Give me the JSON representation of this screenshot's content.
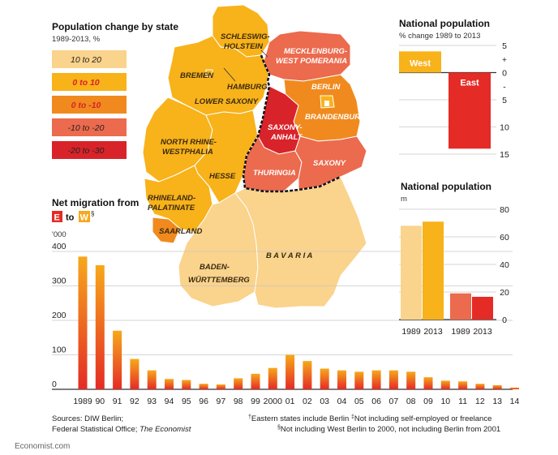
{
  "map": {
    "title": "Population change by state",
    "subtitle": "1989-2013, %",
    "legend": [
      {
        "label": "10 to 20",
        "color": "#FAD38C",
        "red": false
      },
      {
        "label": "0 to 10",
        "color": "#F8B21A",
        "red": true
      },
      {
        "label": "0 to -10",
        "color": "#F08A1E",
        "red": true
      },
      {
        "label": "-10 to -20",
        "color": "#EC6A4E",
        "red": false
      },
      {
        "label": "-20 to -30",
        "color": "#D9232A",
        "red": false
      }
    ],
    "states": {
      "schleswig": "SCHLESWIG-",
      "holstein": "HOLSTEIN",
      "mecklenburg": "MECKLENBURG-",
      "westpom": "WEST POMERANIA",
      "bremen": "BREMEN",
      "hamburg": "HAMBURG",
      "berlin": "BERLIN",
      "lower_saxony": "LOWER SAXONY",
      "brandenburg": "BRANDENBURG",
      "saxony_anhalt_1": "SAXONY-",
      "saxony_anhalt_2": "ANHALT",
      "nrw_1": "NORTH RHINE-",
      "nrw_2": "WESTPHALIA",
      "hesse": "HESSE",
      "thuringia": "THURINGIA",
      "saxony": "SAXONY",
      "rp_1": "RHINELAND-",
      "rp_2": "PALATINATE",
      "saarland": "SAARLAND",
      "bw_1": "BADEN-",
      "bw_2": "WÜRTTEMBERG",
      "bavaria": "B A V A R I A"
    }
  },
  "chart_data": [
    {
      "type": "bar",
      "title": "Net migration from",
      "title_from": "E",
      "title_to_word": "to",
      "title_to": "W",
      "title_to_mark": "§",
      "ylabel": "'000",
      "categories": [
        "1989",
        "90",
        "91",
        "92",
        "93",
        "94",
        "95",
        "96",
        "97",
        "98",
        "99",
        "2000",
        "01",
        "02",
        "03",
        "04",
        "05",
        "06",
        "07",
        "08",
        "09",
        "10",
        "11",
        "12",
        "13",
        "14"
      ],
      "values": [
        385,
        360,
        170,
        88,
        55,
        30,
        27,
        16,
        14,
        32,
        45,
        62,
        100,
        82,
        60,
        55,
        51,
        55,
        55,
        51,
        35,
        25,
        23,
        16,
        12,
        5
      ],
      "ylim": [
        0,
        400
      ],
      "yticks": [
        0,
        100,
        200,
        300,
        400
      ],
      "colors": {
        "top": "#F7A81B",
        "bottom": "#E42B26"
      }
    },
    {
      "type": "bar",
      "title": "National population",
      "subtitle": "% change 1989 to 2013",
      "categories": [
        "West",
        "East"
      ],
      "values": [
        3.9,
        -14
      ],
      "ylim": [
        -15,
        5
      ],
      "ytick_labels": [
        "5",
        "+",
        "0",
        "-",
        "5",
        "10",
        "15"
      ],
      "colors": [
        "#F8B21A",
        "#E42B26"
      ]
    },
    {
      "type": "bar",
      "title": "National population",
      "ylabel": "m",
      "groups": [
        {
          "values": [
            68,
            71
          ],
          "colors": [
            "#FAD38C",
            "#F8B21A"
          ],
          "labels": [
            "1989",
            "2013"
          ]
        },
        {
          "values": [
            19,
            16.5
          ],
          "colors": [
            "#EC6A4E",
            "#E42B26"
          ],
          "labels": [
            "1989",
            "2013"
          ]
        }
      ],
      "ylim": [
        0,
        80
      ],
      "yticks": [
        0,
        20,
        40,
        60,
        80
      ]
    }
  ],
  "footer": {
    "sources_1": "Sources: DIW Berlin;",
    "sources_2a": "Federal Statistical Office; ",
    "sources_2b": "The Economist",
    "note_1a": "†",
    "note_1b": "Eastern states include Berlin   ",
    "note_1c": "‡",
    "note_1d": "Not including self-employed or freelance",
    "note_2a": "§",
    "note_2b": "Not including West Berlin to 2000, not including Berlin from 2001",
    "brand": "Economist.com"
  }
}
